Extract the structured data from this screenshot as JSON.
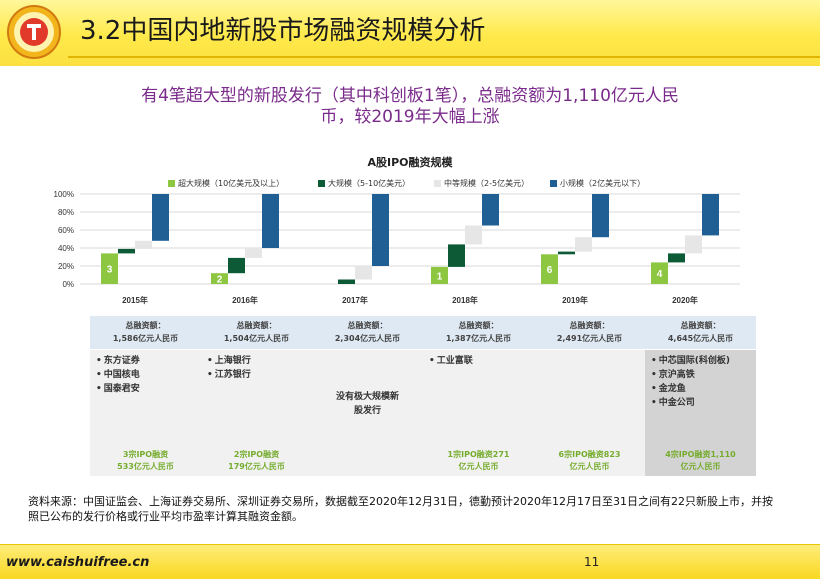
{
  "header": {
    "title": "3.2中国内地新股市场融资规模分析"
  },
  "subtitle": {
    "line1": "有4笔超大型的新股发行（其中科创板1笔），总融资额为1,110亿元人民",
    "line2": "币，较2019年大幅上涨"
  },
  "colors": {
    "super": "#8dc641",
    "large": "#0d5a36",
    "medium": "#e6e6e6",
    "small": "#1f5f93",
    "count_label": "#ffffff"
  },
  "chart_data": {
    "type": "bar",
    "subtype": "stacked-waterfall-100",
    "title": "A股IPO融资规模",
    "categories": [
      "2015年",
      "2016年",
      "2017年",
      "2018年",
      "2019年",
      "2020年"
    ],
    "y_ticks": [
      "0%",
      "20%",
      "40%",
      "60%",
      "80%",
      "100%"
    ],
    "ylim": [
      0,
      100
    ],
    "legend_position": "top",
    "series": [
      {
        "name": "超大规模（10亿美元及以上）",
        "values": [
          34,
          12,
          0,
          19,
          33,
          24
        ]
      },
      {
        "name": "大规模（5-10亿美元）",
        "values": [
          5,
          17,
          5,
          25,
          3,
          10
        ]
      },
      {
        "name": "中等规模（2-5亿美元）",
        "values": [
          9,
          11,
          15,
          21,
          16,
          20
        ]
      },
      {
        "name": "小规模（2亿美元以下）",
        "values": [
          52,
          60,
          80,
          35,
          48,
          46
        ]
      }
    ],
    "count_labels": [
      "3",
      "2",
      "",
      "1",
      "6",
      "4"
    ]
  },
  "panels": [
    {
      "total_label": "总融资额：",
      "total_value": "1,586亿元人民币",
      "items": [
        "东方证券",
        "中国核电",
        "国泰君安"
      ],
      "note": "",
      "foot1": "3宗IPO融资",
      "foot2": "533亿元人民币"
    },
    {
      "total_label": "总融资额：",
      "total_value": "1,504亿元人民币",
      "items": [
        "上海银行",
        "江苏银行"
      ],
      "note": "",
      "foot1": "2宗IPO融资",
      "foot2": "179亿元人民币"
    },
    {
      "total_label": "总融资额：",
      "total_value": "2,304亿元人民币",
      "items": [],
      "note": "没有极大规模新股发行",
      "foot1": "",
      "foot2": ""
    },
    {
      "total_label": "总融资额：",
      "total_value": "1,387亿元人民币",
      "items": [
        "工业富联"
      ],
      "note": "",
      "foot1": "1宗IPO融资271",
      "foot2": "亿元人民币"
    },
    {
      "total_label": "总融资额：",
      "total_value": "2,491亿元人民币",
      "items": [],
      "note": "",
      "foot1": "6宗IPO融资823",
      "foot2": "亿元人民币"
    },
    {
      "total_label": "总融资额：",
      "total_value": "4,645亿元人民币",
      "items": [
        "中芯国际(科创板)",
        "京沪高铁",
        "金龙鱼",
        "中金公司"
      ],
      "note": "",
      "foot1": "4宗IPO融资1,110",
      "foot2": "亿元人民币"
    }
  ],
  "source": "资料来源：中国证监会、上海证券交易所、深圳证券交易所，数据截至2020年12月31日，德勤预计2020年12月17日至31日之间有22只新股上市，并按照已公布的发行价格或行业平均市盈率计算其融资金额。",
  "footer": {
    "site": "www.caishuifree.cn",
    "page": "11"
  }
}
